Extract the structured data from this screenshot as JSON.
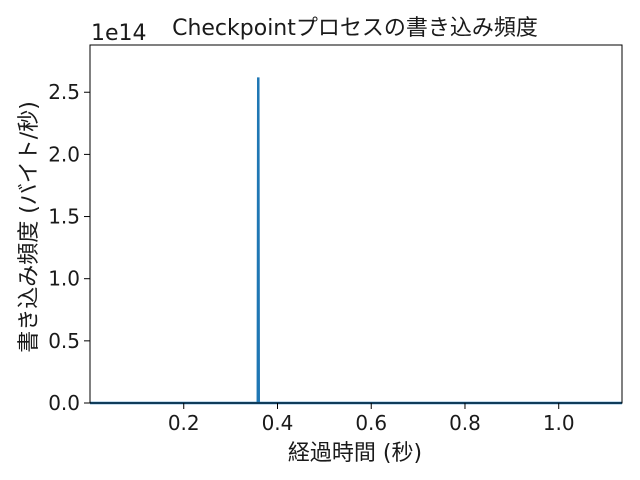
{
  "chart_data": {
    "type": "line",
    "title": "Checkpointプロセスの書き込み頻度",
    "xlabel": "経過時間 (秒)",
    "ylabel": "書き込み頻度 (バイト/秒)",
    "y_offset_text": "1e14",
    "xlim": [
      0.0,
      1.135
    ],
    "ylim": [
      0.0,
      2.88
    ],
    "xticks": [
      0.2,
      0.4,
      0.6,
      0.8,
      1.0
    ],
    "xtick_labels": [
      "0.2",
      "0.4",
      "0.6",
      "0.8",
      "1.0"
    ],
    "yticks": [
      0.0,
      0.5,
      1.0,
      1.5,
      2.0,
      2.5
    ],
    "ytick_labels": [
      "0.0",
      "0.5",
      "1.0",
      "1.5",
      "2.0",
      "2.5"
    ],
    "grid": false,
    "series": [
      {
        "color": "#1f77b4",
        "x": [
          0.0,
          0.358,
          0.359,
          0.36,
          1.135
        ],
        "y": [
          0.0,
          0.0,
          2.62,
          0.0,
          0.0
        ]
      }
    ]
  }
}
